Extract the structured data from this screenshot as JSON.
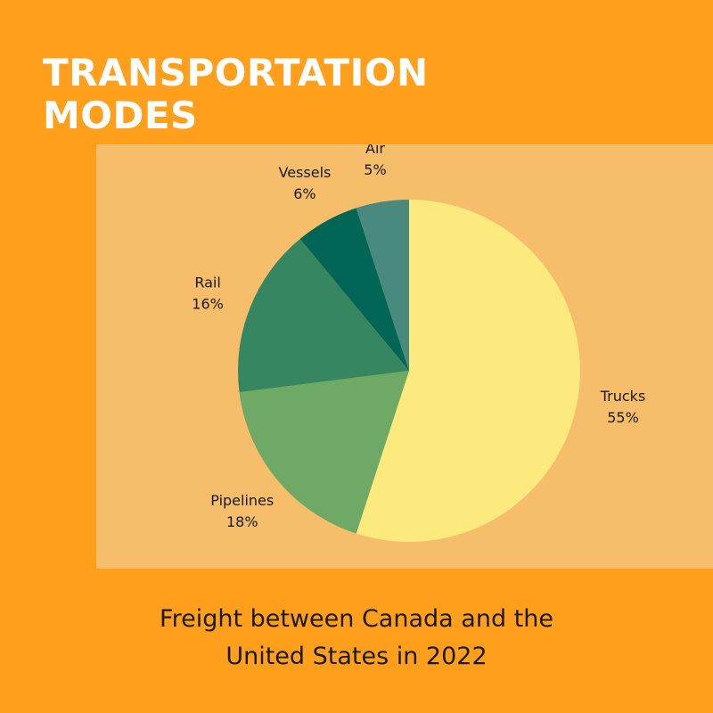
{
  "header": {
    "title_line1": "TRANSPORTATION",
    "title_line2": "MODES"
  },
  "caption": {
    "line1": "Freight between Canada and the",
    "line2": "United States in 2022"
  },
  "colors": {
    "background": "#ff9f1c",
    "panel": "#f6be6a",
    "title": "#ffffff"
  },
  "chart_data": {
    "type": "pie",
    "title": "",
    "slices": [
      {
        "label": "Trucks",
        "value": 55,
        "value_label": "55%",
        "color": "#fcea7e"
      },
      {
        "label": "Pipelines",
        "value": 18,
        "value_label": "18%",
        "color": "#6ea966"
      },
      {
        "label": "Rail",
        "value": 16,
        "value_label": "16%",
        "color": "#368761"
      },
      {
        "label": "Vessels",
        "value": 6,
        "value_label": "6%",
        "color": "#016655"
      },
      {
        "label": "Air",
        "value": 5,
        "value_label": "5%",
        "color": "#4a897d"
      }
    ]
  }
}
